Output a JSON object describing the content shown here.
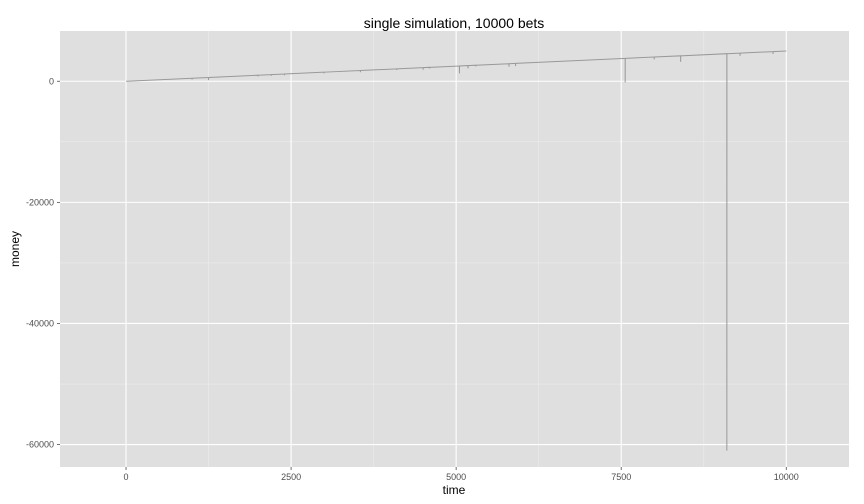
{
  "chart_data": {
    "type": "line",
    "title": "single simulation, 10000 bets",
    "xlabel": "time",
    "ylabel": "money",
    "xlim": [
      -1000,
      10950
    ],
    "ylim": [
      -63700,
      8300
    ],
    "x_ticks": [
      0,
      2500,
      5000,
      7500,
      10000
    ],
    "x_tick_labels": [
      "0",
      "2500",
      "5000",
      "7500",
      "10000"
    ],
    "y_ticks": [
      0,
      -20000,
      -40000,
      -60000
    ],
    "y_tick_labels": [
      "0",
      "-20000",
      "-40000",
      "-60000"
    ],
    "grid": true,
    "colors": {
      "panel_background": "#dfdfdf",
      "grid_major": "#ffffff",
      "grid_minor": "#ececec",
      "line": "#999999",
      "tick_text": "#4d4d4d"
    },
    "series": [
      {
        "trend_start": [
          0,
          0
        ],
        "trend_end": [
          10000,
          5000
        ],
        "dips": [
          {
            "x": 1000,
            "y": 300
          },
          {
            "x": 1250,
            "y": 180
          },
          {
            "x": 2000,
            "y": 800
          },
          {
            "x": 2200,
            "y": 900
          },
          {
            "x": 2400,
            "y": 1000
          },
          {
            "x": 3000,
            "y": 1300
          },
          {
            "x": 3550,
            "y": 1500
          },
          {
            "x": 4100,
            "y": 1850
          },
          {
            "x": 4500,
            "y": 1900
          },
          {
            "x": 4600,
            "y": 2100
          },
          {
            "x": 5050,
            "y": 1300
          },
          {
            "x": 5180,
            "y": 2100
          },
          {
            "x": 5300,
            "y": 2450
          },
          {
            "x": 5800,
            "y": 2400
          },
          {
            "x": 5900,
            "y": 2500
          },
          {
            "x": 7560,
            "y": -200
          },
          {
            "x": 8000,
            "y": 3600
          },
          {
            "x": 8400,
            "y": 3200
          },
          {
            "x": 9100,
            "y": -61000
          },
          {
            "x": 9300,
            "y": 4200
          },
          {
            "x": 9800,
            "y": 4500
          }
        ]
      }
    ]
  }
}
